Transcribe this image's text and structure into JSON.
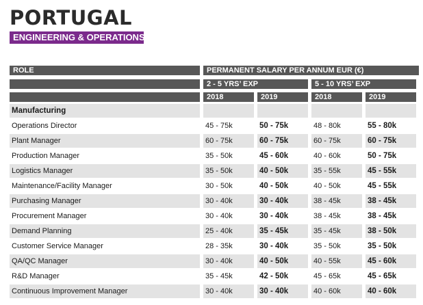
{
  "header": {
    "country": "PORTUGAL",
    "category": "ENGINEERING & OPERATIONS"
  },
  "table": {
    "role_header": "ROLE",
    "salary_header": "PERMANENT SALARY PER ANNUM EUR (€)",
    "exp_groups": [
      "2 - 5 YRS’ EXP",
      "5 - 10 YRS’ EXP"
    ],
    "years": [
      "2018",
      "2019",
      "2018",
      "2019"
    ],
    "section_label": "Manufacturing",
    "rows": [
      {
        "role": "Operations Director",
        "v": [
          "45 - 75k",
          "50 - 75k",
          "48 - 80k",
          "55 - 80k"
        ]
      },
      {
        "role": "Plant Manager",
        "v": [
          "60 - 75k",
          "60 - 75k",
          "60 - 75k",
          "60 - 75k"
        ]
      },
      {
        "role": "Production Manager",
        "v": [
          "35 - 50k",
          "45 - 60k",
          "40 - 60k",
          "50 - 75k"
        ]
      },
      {
        "role": "Logistics Manager",
        "v": [
          "35 - 50k",
          "40 - 50k",
          "35 - 55k",
          "45 - 55k"
        ]
      },
      {
        "role": "Maintenance/Facility Manager",
        "v": [
          "30 - 50k",
          "40 - 50k",
          "40 - 50k",
          "45 - 55k"
        ]
      },
      {
        "role": "Purchasing Manager",
        "v": [
          "30 - 40k",
          "30 - 40k",
          "38 - 45k",
          "38 - 45k"
        ]
      },
      {
        "role": "Procurement Manager",
        "v": [
          "30 - 40k",
          "30 - 40k",
          "38 - 45k",
          "38 - 45k"
        ]
      },
      {
        "role": "Demand Planning",
        "v": [
          "25 - 40k",
          "35 - 45k",
          "35 - 45k",
          "38 - 50k"
        ]
      },
      {
        "role": "Customer Service Manager",
        "v": [
          "28 - 35k",
          "30 - 40k",
          "35 - 50k",
          "35 - 50k"
        ]
      },
      {
        "role": "QA/QC Manager",
        "v": [
          "30 - 40k",
          "40 - 50k",
          "40 - 55k",
          "45 - 60k"
        ]
      },
      {
        "role": "R&D Manager",
        "v": [
          "35 - 45k",
          "42 - 50k",
          "45 - 65k",
          "45 - 65k"
        ]
      },
      {
        "role": "Continuous Improvement Manager",
        "v": [
          "30 - 40k",
          "30 - 40k",
          "40 - 60k",
          "40 - 60k"
        ]
      }
    ]
  }
}
